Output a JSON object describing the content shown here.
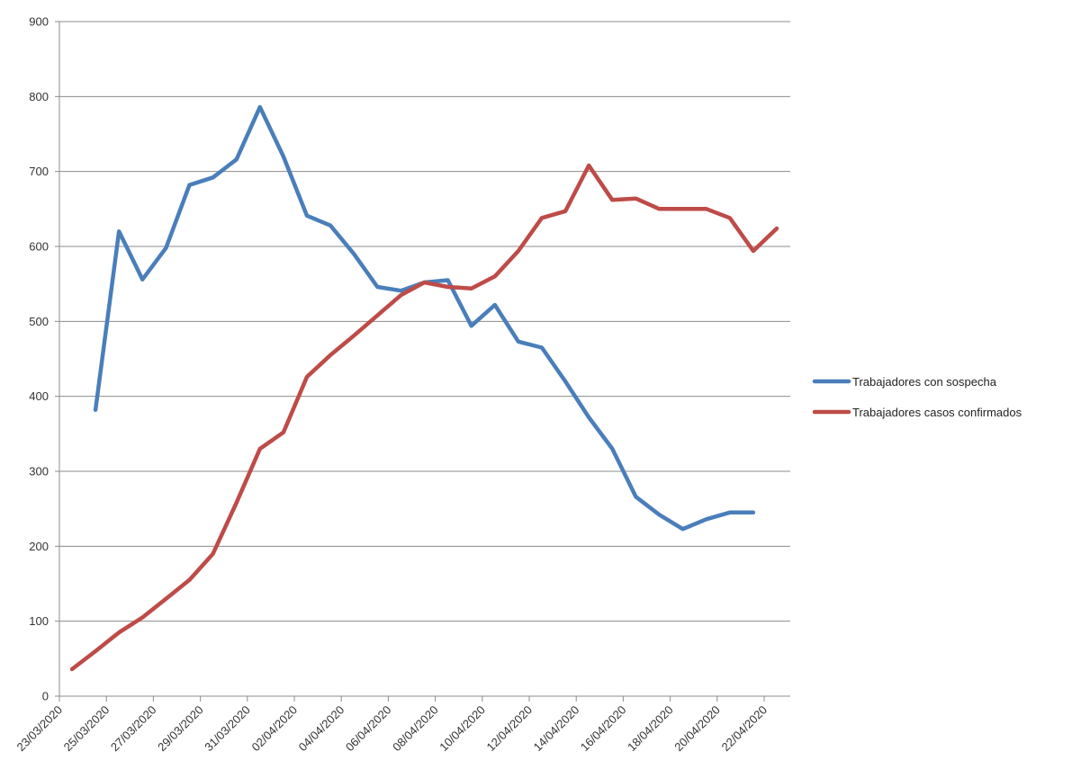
{
  "chart_data": {
    "type": "line",
    "title": "",
    "xlabel": "",
    "ylabel": "",
    "ylim": [
      0,
      900
    ],
    "yticks": [
      0,
      100,
      200,
      300,
      400,
      500,
      600,
      700,
      800,
      900
    ],
    "grid": "horizontal",
    "legend_position": "right",
    "x_tick_labels": [
      "23/03/2020",
      "25/03/2020",
      "27/03/2020",
      "29/03/2020",
      "31/03/2020",
      "02/04/2020",
      "04/04/2020",
      "06/04/2020",
      "08/04/2020",
      "10/04/2020",
      "12/04/2020",
      "14/04/2020",
      "16/04/2020",
      "18/04/2020",
      "20/04/2020",
      "22/04/2020"
    ],
    "x": [
      "23/03/2020",
      "24/03/2020",
      "25/03/2020",
      "26/03/2020",
      "27/03/2020",
      "28/03/2020",
      "29/03/2020",
      "30/03/2020",
      "31/03/2020",
      "01/04/2020",
      "02/04/2020",
      "03/04/2020",
      "04/04/2020",
      "05/04/2020",
      "06/04/2020",
      "07/04/2020",
      "08/04/2020",
      "09/04/2020",
      "10/04/2020",
      "11/04/2020",
      "12/04/2020",
      "13/04/2020",
      "14/04/2020",
      "15/04/2020",
      "16/04/2020",
      "17/04/2020",
      "18/04/2020",
      "19/04/2020",
      "20/04/2020",
      "21/04/2020",
      "22/04/2020"
    ],
    "series": [
      {
        "name": "Trabajadores con sospecha",
        "color": "#4a7ebb",
        "values": [
          null,
          382,
          620,
          556,
          598,
          682,
          692,
          716,
          786,
          720,
          641,
          628,
          590,
          546,
          541,
          552,
          555,
          494,
          522,
          473,
          465,
          420,
          372,
          330,
          266,
          242,
          223,
          236,
          245,
          245,
          null
        ]
      },
      {
        "name": "Trabajadores casos confirmados",
        "color": "#be4b48",
        "values": [
          36,
          60,
          85,
          105,
          130,
          155,
          190,
          258,
          330,
          352,
          426,
          455,
          481,
          508,
          535,
          552,
          546,
          544,
          560,
          594,
          638,
          647,
          708,
          662,
          664,
          650,
          650,
          650,
          638,
          594,
          624
        ]
      }
    ]
  }
}
